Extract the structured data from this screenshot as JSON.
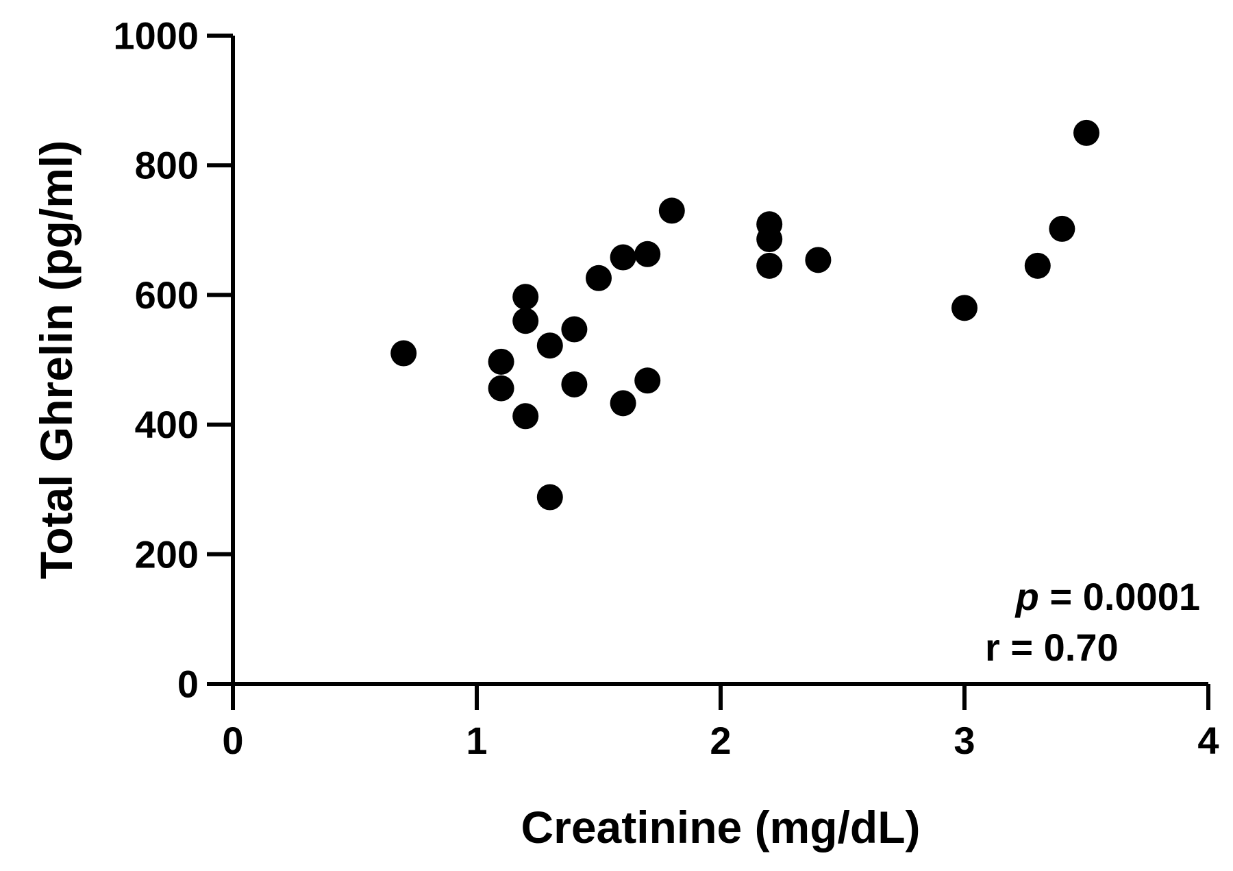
{
  "chart_data": {
    "type": "scatter",
    "title": "",
    "xlabel": "Creatinine (mg/dL)",
    "ylabel": "Total Ghrelin (pg/ml)",
    "xlim": [
      0,
      4
    ],
    "ylim": [
      0,
      1000
    ],
    "x_ticks": [
      "0",
      "1",
      "2",
      "3",
      "4"
    ],
    "y_ticks": [
      "0",
      "200",
      "400",
      "600",
      "800",
      "1000"
    ],
    "grid": false,
    "marker_color": "#000000",
    "annotations": {
      "p_symbol": "p",
      "p_value": " = 0.0001",
      "r_text": "r = 0.70"
    },
    "points": [
      {
        "x": 0.7,
        "y": 510
      },
      {
        "x": 1.1,
        "y": 497
      },
      {
        "x": 1.1,
        "y": 456
      },
      {
        "x": 1.2,
        "y": 597
      },
      {
        "x": 1.2,
        "y": 560
      },
      {
        "x": 1.2,
        "y": 413
      },
      {
        "x": 1.3,
        "y": 522
      },
      {
        "x": 1.3,
        "y": 288
      },
      {
        "x": 1.4,
        "y": 547
      },
      {
        "x": 1.4,
        "y": 462
      },
      {
        "x": 1.5,
        "y": 626
      },
      {
        "x": 1.6,
        "y": 658
      },
      {
        "x": 1.6,
        "y": 433
      },
      {
        "x": 1.7,
        "y": 663
      },
      {
        "x": 1.7,
        "y": 468
      },
      {
        "x": 1.8,
        "y": 730
      },
      {
        "x": 2.2,
        "y": 709
      },
      {
        "x": 2.2,
        "y": 686
      },
      {
        "x": 2.2,
        "y": 645
      },
      {
        "x": 2.4,
        "y": 654
      },
      {
        "x": 3.0,
        "y": 580
      },
      {
        "x": 3.3,
        "y": 645
      },
      {
        "x": 3.4,
        "y": 702
      },
      {
        "x": 3.5,
        "y": 850
      }
    ]
  }
}
